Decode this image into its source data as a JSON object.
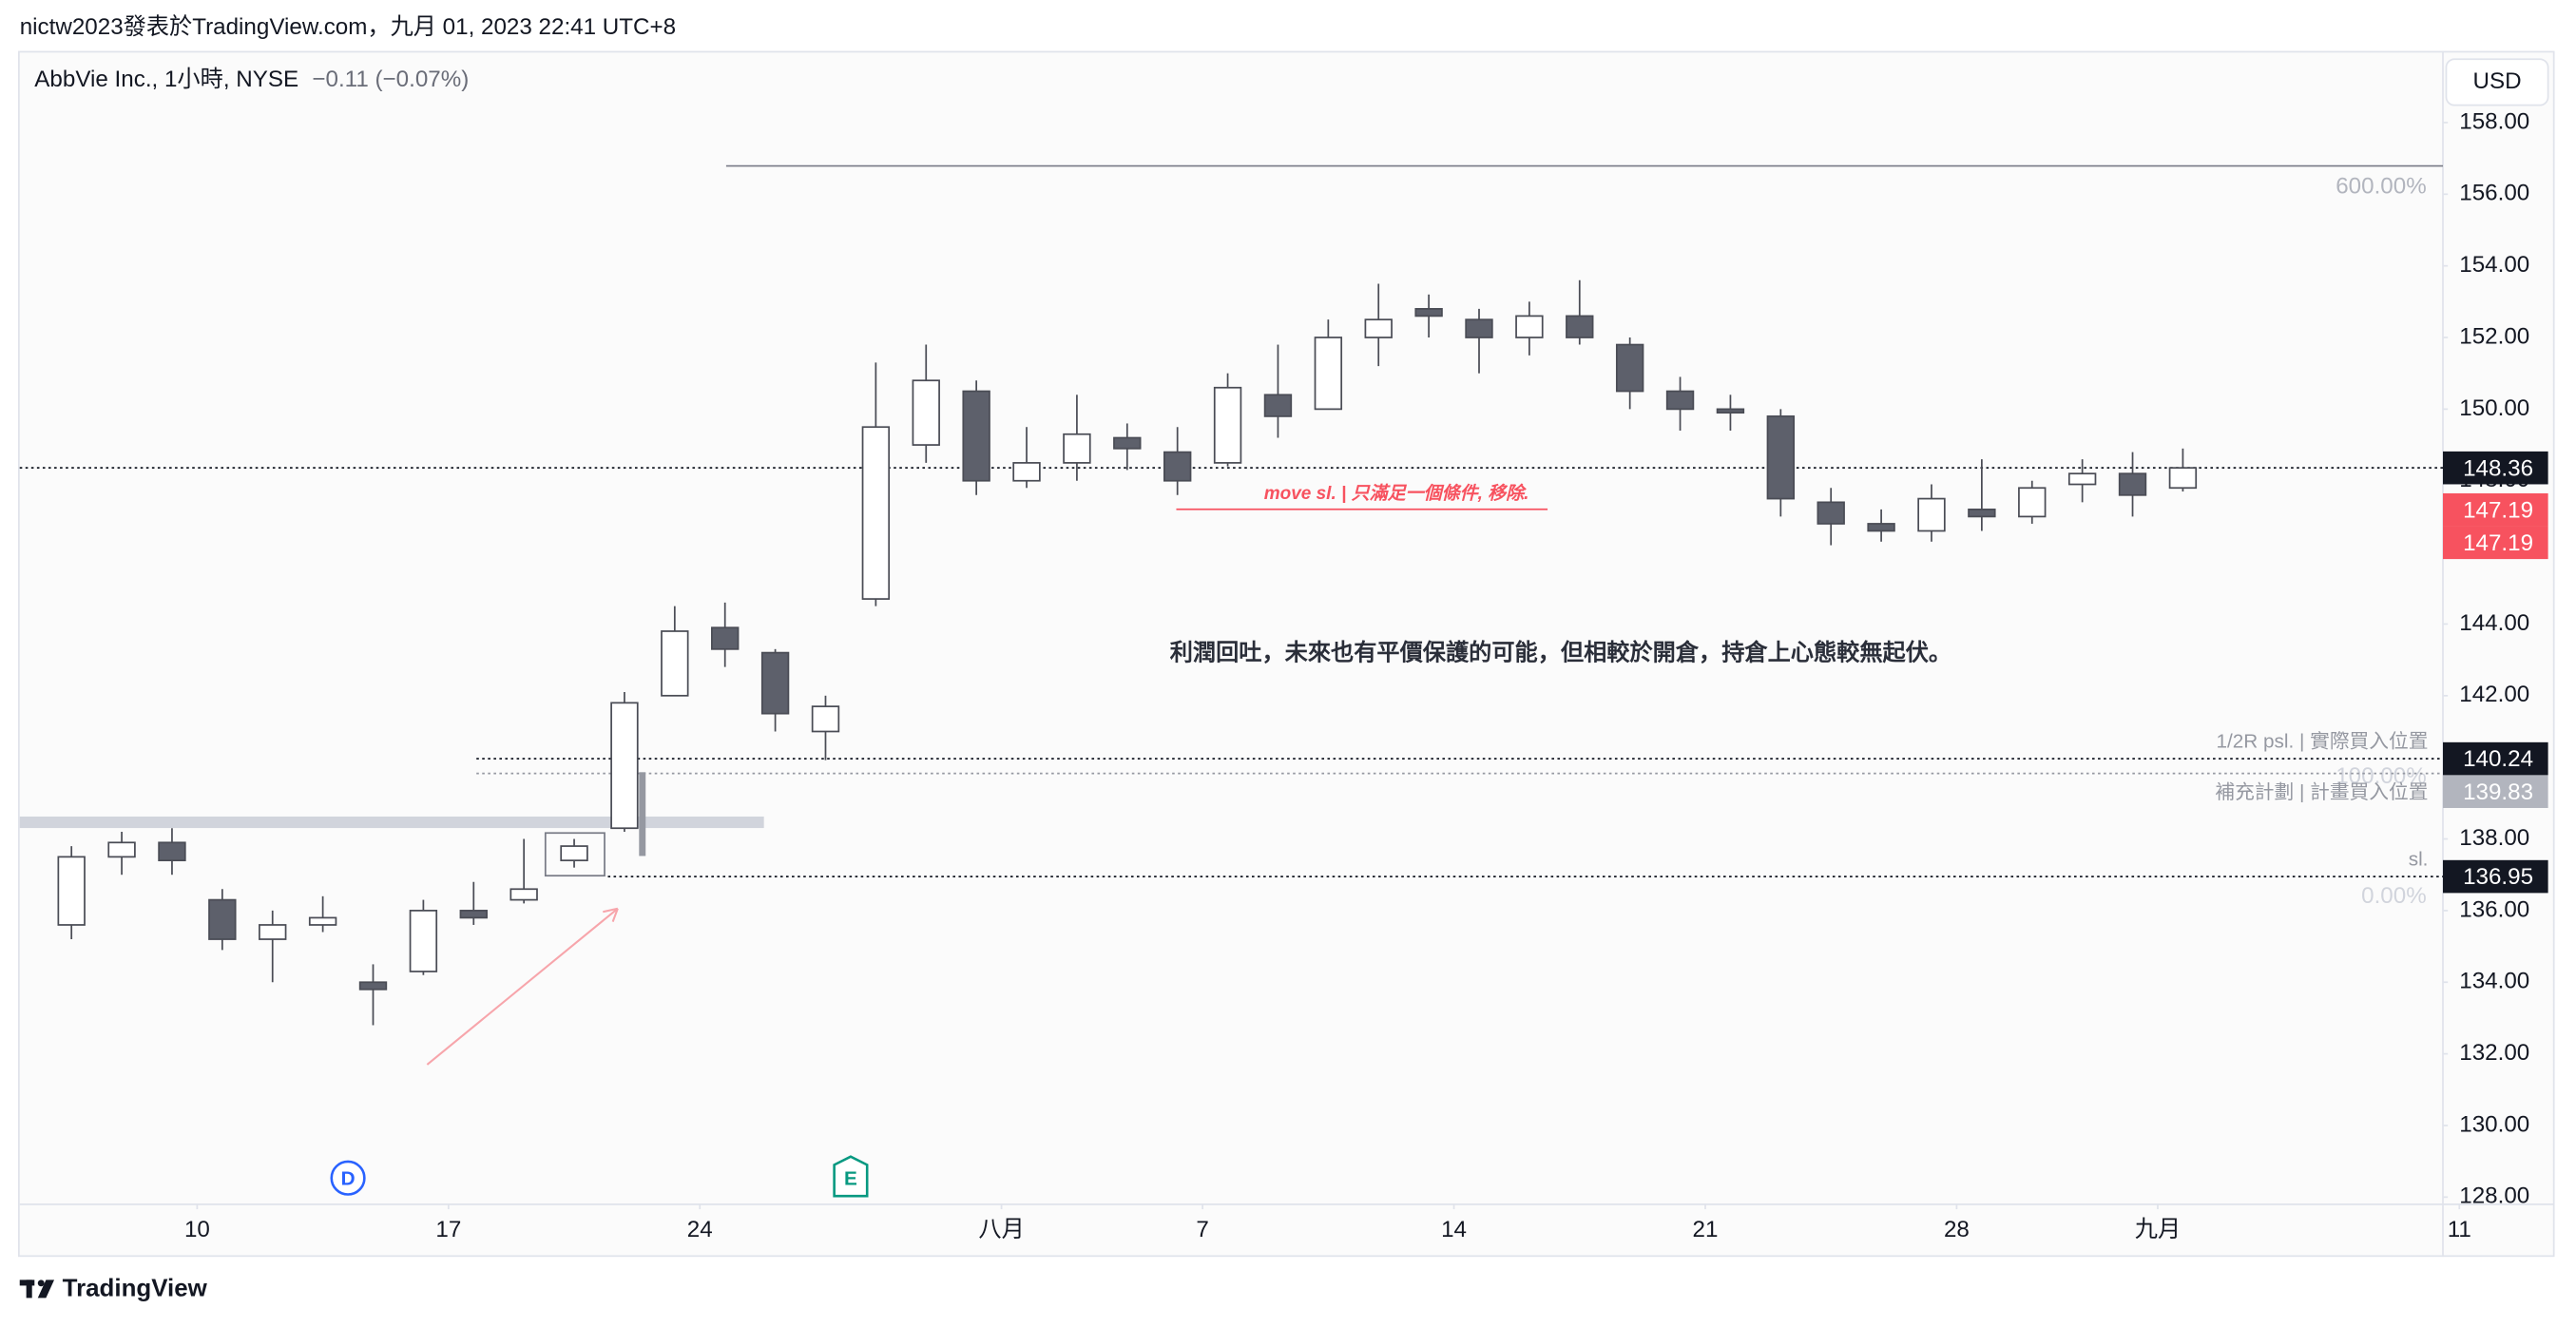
{
  "header": {
    "text": "nictw2023發表於TradingView.com，九月 01, 2023 22:41 UTC+8"
  },
  "chart_data": {
    "type": "candlestick",
    "title": "AbbVie Inc., 1小時, NYSE",
    "change": "−0.11 (−0.07%)",
    "currency": "USD",
    "x": [
      "07-05",
      "07-06",
      "07-07",
      "07-10",
      "07-11",
      "07-12",
      "07-13",
      "07-14",
      "07-17",
      "07-18",
      "07-19",
      "07-20",
      "07-21",
      "07-24",
      "07-25",
      "07-26",
      "07-27",
      "07-28",
      "07-31",
      "08-01",
      "08-02",
      "08-03",
      "08-04",
      "08-07",
      "08-08",
      "08-09",
      "08-10",
      "08-11",
      "08-14",
      "08-15",
      "08-16",
      "08-17",
      "08-18",
      "08-21",
      "08-22",
      "08-23",
      "08-24",
      "08-25",
      "08-28",
      "08-29",
      "08-30",
      "08-31",
      "09-01"
    ],
    "open": [
      135.6,
      137.5,
      137.9,
      136.3,
      135.2,
      135.6,
      134.0,
      134.3,
      136.0,
      136.3,
      137.4,
      138.3,
      142.0,
      143.9,
      143.2,
      141.0,
      144.7,
      149.0,
      150.5,
      148.0,
      148.5,
      149.2,
      148.8,
      148.5,
      150.4,
      150.0,
      152.0,
      152.8,
      152.5,
      152.0,
      152.6,
      151.8,
      150.5,
      150.0,
      149.8,
      147.4,
      146.8,
      146.6,
      147.2,
      147.0,
      147.9,
      148.2,
      147.8
    ],
    "high": [
      137.8,
      138.2,
      138.3,
      136.6,
      136.0,
      136.4,
      134.5,
      136.3,
      136.8,
      138.0,
      138.0,
      142.1,
      144.5,
      144.6,
      143.3,
      142.0,
      151.3,
      151.8,
      150.8,
      149.5,
      150.4,
      149.6,
      149.5,
      151.0,
      151.8,
      152.5,
      153.5,
      153.2,
      152.8,
      153.0,
      153.6,
      152.0,
      150.9,
      150.4,
      150.0,
      147.8,
      147.2,
      147.9,
      148.6,
      148.0,
      148.6,
      148.8,
      148.9
    ],
    "low": [
      135.2,
      137.0,
      137.0,
      134.9,
      134.0,
      135.4,
      132.8,
      134.2,
      135.6,
      136.2,
      137.2,
      138.2,
      142.0,
      142.8,
      141.0,
      140.2,
      144.5,
      148.5,
      147.6,
      147.8,
      148.0,
      148.3,
      147.6,
      148.4,
      149.2,
      150.0,
      151.2,
      152.0,
      151.0,
      151.5,
      151.8,
      150.0,
      149.4,
      149.4,
      147.0,
      146.2,
      146.3,
      146.3,
      146.6,
      146.8,
      147.4,
      147.0,
      147.7
    ],
    "close": [
      137.5,
      137.9,
      137.4,
      135.2,
      135.6,
      135.8,
      133.8,
      136.0,
      135.8,
      136.6,
      137.8,
      141.8,
      143.8,
      143.3,
      141.5,
      141.7,
      149.5,
      150.8,
      148.0,
      148.5,
      149.3,
      148.9,
      148.0,
      150.6,
      149.8,
      152.0,
      152.5,
      152.6,
      152.0,
      152.6,
      152.0,
      150.5,
      150.0,
      149.9,
      147.5,
      146.8,
      146.6,
      147.5,
      147.0,
      147.8,
      148.2,
      147.6,
      148.36
    ],
    "up_color": "#ffffff",
    "down_color": "#5d606b",
    "wick_color": "#4a4c55",
    "ylim": [
      127.8,
      160
    ],
    "yticks": [
      {
        "value": 128,
        "label": "128.00"
      },
      {
        "value": 130,
        "label": "130.00"
      },
      {
        "value": 132,
        "label": "132.00"
      },
      {
        "value": 134,
        "label": "134.00"
      },
      {
        "value": 136,
        "label": "136.00"
      },
      {
        "value": 138,
        "label": "138.00"
      },
      {
        "value": 140,
        "label": "140.00"
      },
      {
        "value": 142,
        "label": "142.00"
      },
      {
        "value": 144,
        "label": "144.00"
      },
      {
        "value": 146,
        "label": "146.00"
      },
      {
        "value": 148,
        "label": "148.00"
      },
      {
        "value": 150,
        "label": "150.00"
      },
      {
        "value": 152,
        "label": "152.00"
      },
      {
        "value": 154,
        "label": "154.00"
      },
      {
        "value": 156,
        "label": "156.00"
      },
      {
        "value": 158,
        "label": "158.00"
      }
    ],
    "xticks": [
      {
        "value": "07-10",
        "label": "10"
      },
      {
        "value": "07-17",
        "label": "17"
      },
      {
        "value": "07-24",
        "label": "24"
      },
      {
        "value": "08-01",
        "label": "八月"
      },
      {
        "value": "08-07",
        "label": "7"
      },
      {
        "value": "08-14",
        "label": "14"
      },
      {
        "value": "08-21",
        "label": "21"
      },
      {
        "value": "08-28",
        "label": "28"
      },
      {
        "value": "09-01",
        "label": "九月"
      },
      {
        "value": "09-11",
        "label": "11"
      }
    ],
    "price_tags": [
      {
        "value": 148.36,
        "color": "#131722"
      },
      {
        "value": 147.19,
        "color": "#f7525f"
      },
      {
        "value": 147.19,
        "color": "#f7525f"
      }
    ],
    "levels": [
      {
        "value": 140.24,
        "text": "1/2R psl. | 實際買入位置",
        "color": "#131722"
      },
      {
        "value": 139.83,
        "text": "補充計劃 | 計畫買入位置",
        "color": "#b2b5be"
      },
      {
        "value": 136.95,
        "text": "sl.",
        "color": "#131722"
      }
    ],
    "fib_labels": [
      "600.00%",
      "100.00%",
      "0.00%"
    ],
    "events": [
      {
        "date": "07-13",
        "label": "D"
      },
      {
        "date": "07-27",
        "label": "E"
      }
    ],
    "annotations": [
      "move sl. | 只滿足一個條件, 移除.",
      "利潤回吐，未來也有平價保護的可能，但相較於開倉，持倉上心態較無起伏。"
    ]
  },
  "footer": {
    "brand": "TradingView"
  }
}
